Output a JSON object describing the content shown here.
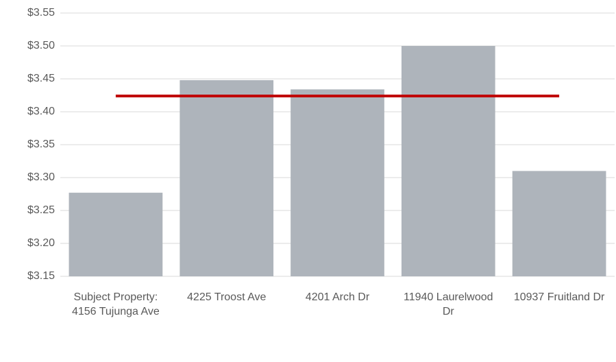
{
  "chart_data": {
    "type": "bar",
    "categories": [
      "Subject Property: 4156 Tujunga Ave",
      "4225 Troost Ave",
      "4201 Arch Dr",
      "11940 Laurelwood Dr",
      "10937 Fruitland Dr"
    ],
    "series": [
      {
        "type": "bar",
        "color": "#aeb4bb",
        "values": [
          3.277,
          3.448,
          3.434,
          3.5,
          3.31
        ]
      },
      {
        "type": "line",
        "color": "#c00000",
        "values": [
          3.424,
          3.424,
          3.424,
          3.424,
          3.424
        ]
      }
    ],
    "ylim": [
      3.15,
      3.55
    ],
    "yticks": [
      {
        "value": 3.15,
        "label": "$3.15"
      },
      {
        "value": 3.2,
        "label": "$3.20"
      },
      {
        "value": 3.25,
        "label": "$3.25"
      },
      {
        "value": 3.3,
        "label": "$3.30"
      },
      {
        "value": 3.35,
        "label": "$3.35"
      },
      {
        "value": 3.4,
        "label": "$3.40"
      },
      {
        "value": 3.45,
        "label": "$3.45"
      },
      {
        "value": 3.5,
        "label": "$3.50"
      },
      {
        "value": 3.55,
        "label": "$3.55"
      }
    ],
    "grid": true
  }
}
